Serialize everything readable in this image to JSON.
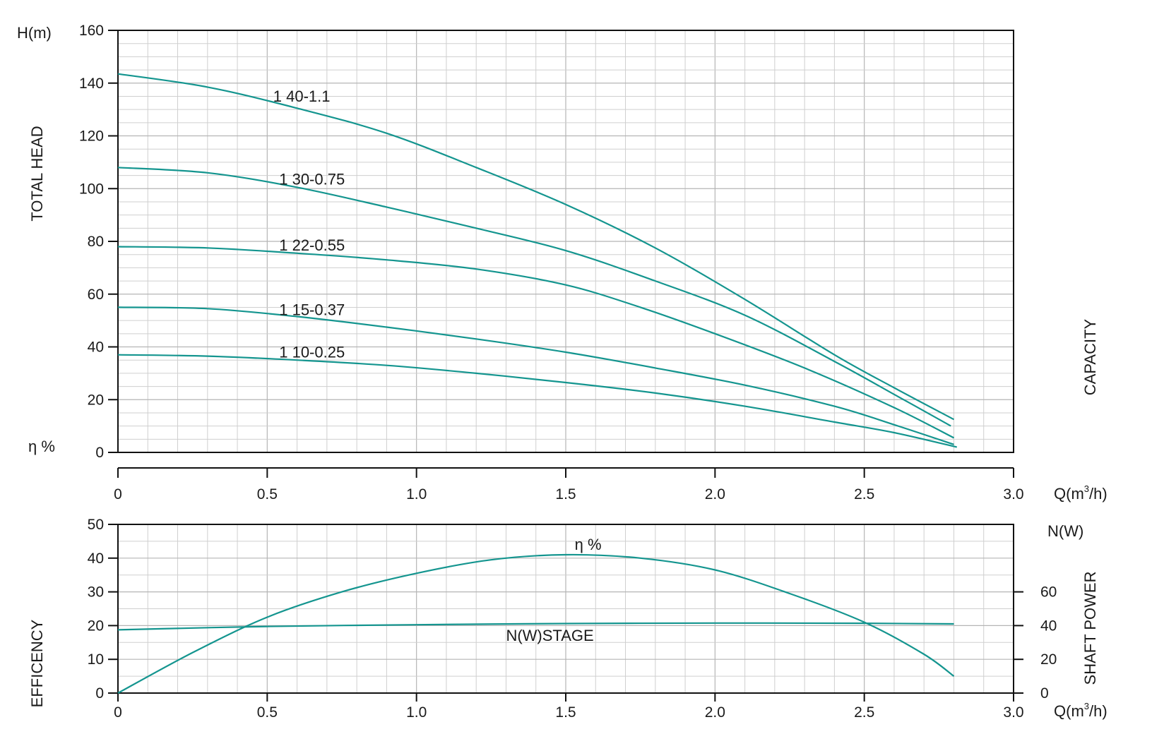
{
  "colors": {
    "curve": "#14958f",
    "grid_minor": "#cfcfcf",
    "grid_major": "#b5b5b5",
    "axis": "#111111"
  },
  "chart_data": [
    {
      "id": "head",
      "type": "line",
      "ylabel": "TOTAL HEAD",
      "y_unit": "H(m)",
      "right_label": "CAPACITY",
      "eta_marker": "η %",
      "x_unit_pre": "Q(m",
      "x_unit_sup": "3",
      "x_unit_post": "/h)",
      "xlim": [
        0,
        3.0
      ],
      "ylim": [
        0,
        160
      ],
      "x_ticks": [
        "0",
        "0.5",
        "1.0",
        "1.5",
        "2.0",
        "2.5",
        "3.0"
      ],
      "y_ticks": [
        "0",
        "20",
        "40",
        "60",
        "80",
        "100",
        "120",
        "140",
        "160"
      ],
      "grid": true,
      "series": [
        {
          "name": "1 40-1.1",
          "x": [
            0,
            0.3,
            0.6,
            0.9,
            1.2,
            1.5,
            1.8,
            2.1,
            2.4,
            2.6,
            2.8
          ],
          "y": [
            143.5,
            138.5,
            130.5,
            121,
            108,
            94,
            77.5,
            58,
            37,
            24.5,
            12.5
          ]
        },
        {
          "name": "1 30-0.75",
          "x": [
            0,
            0.3,
            0.6,
            0.9,
            1.2,
            1.5,
            1.8,
            2.1,
            2.4,
            2.6,
            2.79
          ],
          "y": [
            108,
            106,
            100.5,
            93,
            85,
            76.5,
            65,
            52,
            34.5,
            22,
            10
          ]
        },
        {
          "name": "1 22-0.55",
          "x": [
            0,
            0.3,
            0.6,
            0.9,
            1.2,
            1.5,
            1.75,
            2.0,
            2.3,
            2.6,
            2.8
          ],
          "y": [
            78,
            77.5,
            75.5,
            73,
            69.5,
            63.5,
            55,
            45,
            32,
            17,
            5.5
          ]
        },
        {
          "name": "1 15-0.37",
          "x": [
            0,
            0.3,
            0.6,
            0.9,
            1.2,
            1.5,
            1.8,
            2.1,
            2.4,
            2.6,
            2.8
          ],
          "y": [
            55,
            54.5,
            51.5,
            47.5,
            43,
            38,
            32,
            25.5,
            17.5,
            10.5,
            3
          ]
        },
        {
          "name": "1 10-0.25",
          "x": [
            0,
            0.3,
            0.6,
            0.9,
            1.2,
            1.5,
            1.8,
            2.1,
            2.4,
            2.6,
            2.81
          ],
          "y": [
            37,
            36.5,
            35,
            33,
            30,
            26.5,
            22.5,
            17.5,
            11.5,
            7.5,
            2
          ]
        }
      ],
      "labels": [
        {
          "series": "1 40-1.1",
          "x": 0.52,
          "y": 133
        },
        {
          "series": "1 30-0.75",
          "x": 0.54,
          "y": 101.5
        },
        {
          "series": "1 22-0.55",
          "x": 0.54,
          "y": 76.5
        },
        {
          "series": "1 15-0.37",
          "x": 0.54,
          "y": 52
        },
        {
          "series": "1 10-0.25",
          "x": 0.54,
          "y": 36
        }
      ]
    },
    {
      "id": "efficiency",
      "type": "line",
      "ylabel": "EFFICENCY",
      "right_label": "SHAFT POWER",
      "right_unit": "N(W)",
      "x_unit_pre": "Q(m",
      "x_unit_sup": "3",
      "x_unit_post": "/h)",
      "xlim": [
        0,
        3.0
      ],
      "ylim": [
        0,
        50
      ],
      "y2lim": [
        0,
        100
      ],
      "x_ticks": [
        "0",
        "0.5",
        "1.0",
        "1.5",
        "2.0",
        "2.5",
        "3.0"
      ],
      "y_ticks": [
        "0",
        "10",
        "20",
        "30",
        "40",
        "50"
      ],
      "y2_ticks": [
        "0",
        "20",
        "40",
        "60"
      ],
      "grid": true,
      "series": [
        {
          "name": "η %",
          "axis": "left",
          "x": [
            0,
            0.25,
            0.5,
            0.75,
            1.0,
            1.25,
            1.5,
            1.75,
            2.0,
            2.25,
            2.5,
            2.7,
            2.8
          ],
          "y": [
            0,
            12,
            22.5,
            30,
            35.5,
            39.5,
            41,
            40,
            36.5,
            29.5,
            21,
            11.5,
            5
          ]
        },
        {
          "name": "N(W)STAGE",
          "axis": "right",
          "x": [
            0,
            0.5,
            1.0,
            1.5,
            2.0,
            2.5,
            2.8
          ],
          "y": [
            37.5,
            39.5,
            40.5,
            41.2,
            41.5,
            41.4,
            41
          ]
        }
      ],
      "labels": [
        {
          "series": "η %",
          "x": 1.53,
          "y": 42.5
        },
        {
          "series": "N(W)STAGE",
          "x": 1.3,
          "y": 15.5
        }
      ]
    }
  ]
}
